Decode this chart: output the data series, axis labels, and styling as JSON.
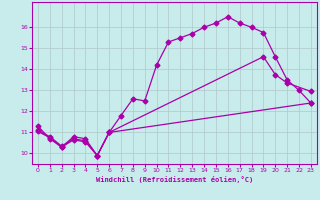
{
  "background_color": "#c8ecec",
  "grid_color": "#b0c8c8",
  "line_color": "#aa00aa",
  "marker": "D",
  "markersize": 2.5,
  "linewidth": 0.9,
  "xlabel": "Windchill (Refroidissement éolien,°C)",
  "xlim": [
    -0.5,
    23.5
  ],
  "ylim": [
    9.5,
    17.2
  ],
  "yticks": [
    10,
    11,
    12,
    13,
    14,
    15,
    16
  ],
  "xticks": [
    0,
    1,
    2,
    3,
    4,
    5,
    6,
    7,
    8,
    9,
    10,
    11,
    12,
    13,
    14,
    15,
    16,
    17,
    18,
    19,
    20,
    21,
    22,
    23
  ],
  "line1_x": [
    0,
    1,
    2,
    3,
    4,
    5,
    6,
    7,
    8,
    9,
    10,
    11,
    12,
    13,
    14,
    15,
    16,
    17,
    18,
    19,
    20,
    21,
    22,
    23
  ],
  "line1_y": [
    11.3,
    10.7,
    10.3,
    10.8,
    10.7,
    9.9,
    11.0,
    11.8,
    12.6,
    12.5,
    14.2,
    15.3,
    15.5,
    15.7,
    16.0,
    16.2,
    16.5,
    16.2,
    16.0,
    15.75,
    14.6,
    13.5,
    13.0,
    12.4
  ],
  "line2_x": [
    0,
    1,
    2,
    3,
    4,
    5,
    6,
    19,
    20,
    21,
    23
  ],
  "line2_y": [
    11.1,
    10.8,
    10.35,
    10.7,
    10.6,
    9.9,
    11.0,
    14.6,
    13.75,
    13.35,
    12.95
  ],
  "line3_x": [
    0,
    1,
    2,
    3,
    4,
    5,
    6,
    23
  ],
  "line3_y": [
    11.05,
    10.75,
    10.3,
    10.65,
    10.55,
    9.9,
    11.0,
    12.4
  ]
}
